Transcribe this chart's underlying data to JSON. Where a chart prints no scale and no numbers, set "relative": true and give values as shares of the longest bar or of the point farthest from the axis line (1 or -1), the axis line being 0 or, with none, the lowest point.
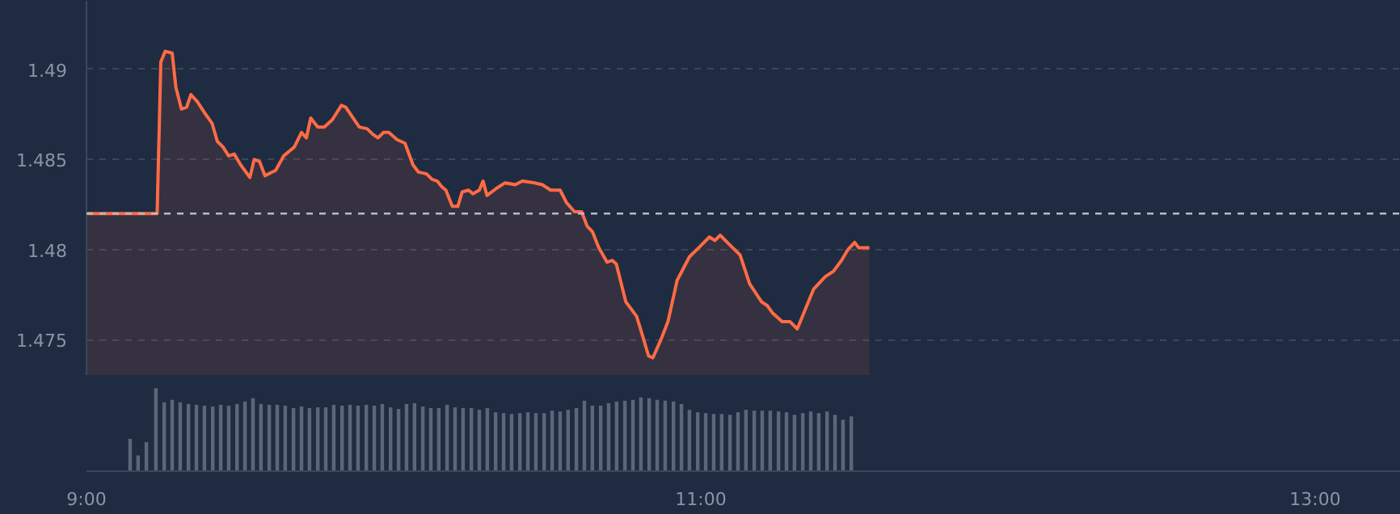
{
  "chart_data": [
    {
      "type": "area",
      "color": "#ff6b45",
      "xlim": [
        9,
        13.279
      ],
      "ylim": [
        1.473,
        1.4938
      ],
      "yticks": [
        1.475,
        1.48,
        1.485,
        1.49
      ],
      "grid": "y",
      "tick_labels": "y",
      "x": [
        9.0,
        9.23,
        9.242,
        9.256,
        9.279,
        9.291,
        9.309,
        9.326,
        9.34,
        9.361,
        9.388,
        9.409,
        9.426,
        9.444,
        9.463,
        9.481,
        9.502,
        9.532,
        9.546,
        9.563,
        9.581,
        9.616,
        9.642,
        9.677,
        9.7,
        9.716,
        9.73,
        9.753,
        9.774,
        9.8,
        9.83,
        9.844,
        9.888,
        9.914,
        9.932,
        9.949,
        9.967,
        9.984,
        10.011,
        10.037,
        10.063,
        10.081,
        10.107,
        10.125,
        10.142,
        10.156,
        10.17,
        10.191,
        10.209,
        10.223,
        10.244,
        10.258,
        10.279,
        10.291,
        10.304,
        10.335,
        10.362,
        10.396,
        10.419,
        10.458,
        10.484,
        10.511,
        10.542,
        10.563,
        10.589,
        10.612,
        10.63,
        10.647,
        10.668,
        10.695,
        10.712,
        10.725,
        10.756,
        10.791,
        10.809,
        10.83,
        10.844,
        10.87,
        10.893,
        10.923,
        10.963,
        10.993,
        11.028,
        11.046,
        11.063,
        11.098,
        11.128,
        11.159,
        11.198,
        11.216,
        11.233,
        11.265,
        11.291,
        11.314,
        11.338,
        11.367,
        11.405,
        11.432,
        11.458,
        11.479,
        11.501,
        11.514,
        11.549
      ],
      "values": [
        1.482,
        1.482,
        1.4904,
        1.491,
        1.4909,
        1.489,
        1.4878,
        1.4879,
        1.4886,
        1.4882,
        1.4875,
        1.487,
        1.486,
        1.4857,
        1.4852,
        1.4853,
        1.4847,
        1.484,
        1.485,
        1.4849,
        1.4841,
        1.4844,
        1.4852,
        1.4857,
        1.4865,
        1.4862,
        1.4873,
        1.4868,
        1.4868,
        1.4872,
        1.488,
        1.4879,
        1.4868,
        1.4867,
        1.4864,
        1.4862,
        1.4865,
        1.4865,
        1.4861,
        1.4859,
        1.4847,
        1.4843,
        1.4842,
        1.4839,
        1.4838,
        1.4835,
        1.4833,
        1.4824,
        1.4824,
        1.4832,
        1.4833,
        1.4831,
        1.4833,
        1.4838,
        1.483,
        1.4834,
        1.4837,
        1.4836,
        1.4838,
        1.4837,
        1.4836,
        1.4833,
        1.4833,
        1.4826,
        1.4821,
        1.4821,
        1.4813,
        1.481,
        1.4801,
        1.4793,
        1.4794,
        1.4792,
        1.4771,
        1.4763,
        1.4753,
        1.4741,
        1.474,
        1.475,
        1.476,
        1.4783,
        1.4796,
        1.4801,
        1.4807,
        1.4805,
        1.4808,
        1.4802,
        1.4797,
        1.4781,
        1.4771,
        1.4769,
        1.4765,
        1.476,
        1.476,
        1.4756,
        1.4766,
        1.4778,
        1.4785,
        1.4788,
        1.4794,
        1.48,
        1.4804,
        1.4801,
        1.4801
      ],
      "ref_lines": [
        {
          "axis": "y",
          "value": 1.482,
          "color": "#b4bcc8",
          "line_style": "dashed"
        }
      ]
    },
    {
      "type": "bar",
      "relative": true,
      "color": "#5c6678",
      "xlim": [
        9,
        13.279
      ],
      "xticks": [
        {
          "value": 9,
          "label": "9:00"
        },
        {
          "value": 11,
          "label": "11:00"
        },
        {
          "value": 13,
          "label": "13:00"
        }
      ],
      "tick_labels": "x",
      "x": [
        9.142,
        9.168,
        9.195,
        9.226,
        9.253,
        9.279,
        9.305,
        9.332,
        9.358,
        9.384,
        9.411,
        9.437,
        9.463,
        9.49,
        9.516,
        9.542,
        9.568,
        9.595,
        9.621,
        9.647,
        9.674,
        9.7,
        9.726,
        9.753,
        9.779,
        9.805,
        9.832,
        9.858,
        9.884,
        9.911,
        9.937,
        9.963,
        9.99,
        10.016,
        10.042,
        10.068,
        10.095,
        10.121,
        10.147,
        10.174,
        10.2,
        10.226,
        10.253,
        10.279,
        10.305,
        10.332,
        10.358,
        10.384,
        10.411,
        10.437,
        10.463,
        10.49,
        10.516,
        10.542,
        10.568,
        10.595,
        10.621,
        10.647,
        10.674,
        10.7,
        10.726,
        10.753,
        10.779,
        10.805,
        10.832,
        10.858,
        10.884,
        10.911,
        10.937,
        10.963,
        10.99,
        11.016,
        11.042,
        11.068,
        11.095,
        11.121,
        11.147,
        11.174,
        11.2,
        11.226,
        11.253,
        11.279,
        11.305,
        11.332,
        11.358,
        11.384,
        11.411,
        11.437,
        11.463,
        11.49
      ],
      "values": [
        0.39,
        0.19,
        0.35,
        1.0,
        0.83,
        0.86,
        0.83,
        0.81,
        0.8,
        0.79,
        0.78,
        0.8,
        0.79,
        0.81,
        0.84,
        0.88,
        0.81,
        0.8,
        0.8,
        0.79,
        0.76,
        0.78,
        0.76,
        0.77,
        0.77,
        0.8,
        0.79,
        0.8,
        0.79,
        0.8,
        0.79,
        0.81,
        0.77,
        0.75,
        0.81,
        0.82,
        0.78,
        0.76,
        0.76,
        0.8,
        0.77,
        0.76,
        0.76,
        0.74,
        0.76,
        0.71,
        0.7,
        0.69,
        0.7,
        0.71,
        0.7,
        0.7,
        0.73,
        0.72,
        0.74,
        0.76,
        0.85,
        0.79,
        0.79,
        0.82,
        0.84,
        0.85,
        0.86,
        0.89,
        0.88,
        0.86,
        0.85,
        0.84,
        0.81,
        0.74,
        0.71,
        0.7,
        0.69,
        0.69,
        0.68,
        0.71,
        0.74,
        0.73,
        0.73,
        0.73,
        0.72,
        0.71,
        0.68,
        0.7,
        0.72,
        0.7,
        0.72,
        0.68,
        0.62,
        0.66
      ]
    }
  ]
}
